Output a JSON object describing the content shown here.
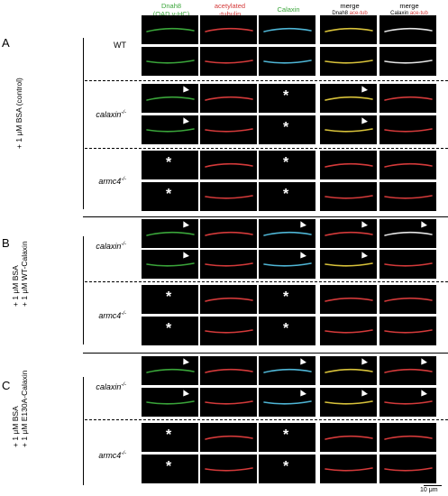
{
  "headers": {
    "col1_line1": "Dnah8",
    "col1_line2": "(OAD γ-HC)",
    "col2_line1": "acetylated",
    "col2_line2": "-tubulin",
    "col3": "Calaxin",
    "col4_line1": "merge",
    "col4_sub_a": "Dnah8",
    "col4_sub_b": "ace-tub",
    "col5_line1": "merge",
    "col5_sub_a": "Calaxin",
    "col5_sub_b": "ace-tub"
  },
  "sections": {
    "A": {
      "letter": "A",
      "condition": "+ 1 μM BSA (control)"
    },
    "B": {
      "letter": "B",
      "condition_1": "+ 1 μM BSA",
      "condition_2": "+ 1 μM WT-Calaxin"
    },
    "C": {
      "letter": "C",
      "condition_1": "+ 1 μM BSA",
      "condition_2": "+ 1 μM E130A-Calaxin"
    }
  },
  "genotypes": {
    "wt": "WT",
    "calaxin": "calaxin",
    "armc4": "armc4",
    "mutant_sup": "-/-"
  },
  "markers": {
    "asterisk": "*"
  },
  "scale_bar": "10 μm",
  "colors": {
    "green": "#3aa53a",
    "red": "#d43a3a",
    "cyan": "#4fb6d6",
    "white": "#e6e6e6",
    "yellow": "#d8c23a"
  }
}
